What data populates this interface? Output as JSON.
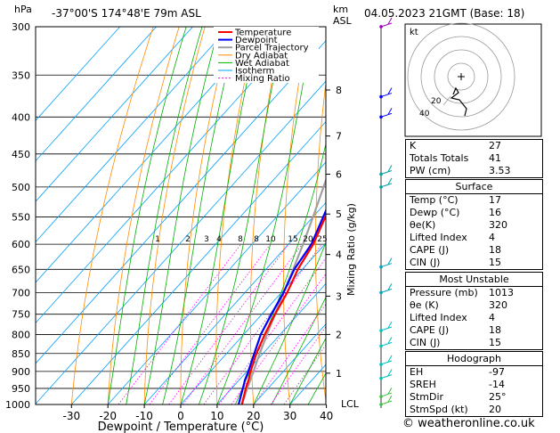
{
  "header": {
    "hpa_label": "hPa",
    "location": "-37°00'S  174°48'E  79m  ASL",
    "km_label": "km",
    "asl_label": "ASL",
    "datetime": "04.05.2023  21GMT  (Base: 18)"
  },
  "chart_data": {
    "type": "line",
    "xlabel": "Dewpoint / Temperature (°C)",
    "ylabel": "Mixing Ratio (g/kg)",
    "xlim": [
      -40,
      40
    ],
    "ylim": [
      1000,
      300
    ],
    "x_ticks": [
      "-30",
      "-20",
      "-10",
      "0",
      "10",
      "20",
      "30",
      "40"
    ],
    "pressure_levels": [
      "300",
      "350",
      "400",
      "450",
      "500",
      "550",
      "600",
      "650",
      "700",
      "750",
      "800",
      "850",
      "900",
      "950",
      "1000"
    ],
    "km_ticks": [
      {
        "km": "8",
        "p": 367
      },
      {
        "km": "7",
        "p": 425
      },
      {
        "km": "6",
        "p": 480
      },
      {
        "km": "5",
        "p": 545
      },
      {
        "km": "4",
        "p": 620
      },
      {
        "km": "3",
        "p": 708
      },
      {
        "km": "2",
        "p": 800
      },
      {
        "km": "1",
        "p": 905
      }
    ],
    "lcl_label": "LCL",
    "lcl_p": 1000,
    "mixing_ratio_labels": [
      "1",
      "2",
      "3",
      "4",
      "8",
      "8",
      "10",
      "15",
      "20",
      "25"
    ],
    "legend": [
      "Temperature",
      "Dewpoint",
      "Parcel Trajectory",
      "Dry Adiabat",
      "Wet Adiabat",
      "Isotherm",
      "Mixing Ratio"
    ],
    "series": [
      {
        "name": "Temperature",
        "color": "#ff0000",
        "points": [
          [
            1000,
            16.8
          ],
          [
            950,
            13.9
          ],
          [
            925,
            12.6
          ],
          [
            900,
            11.0
          ],
          [
            850,
            8.2
          ],
          [
            800,
            5.8
          ],
          [
            750,
            3.6
          ],
          [
            700,
            1.6
          ],
          [
            650,
            -1.2
          ],
          [
            600,
            -3.2
          ],
          [
            550,
            -6.6
          ],
          [
            500,
            -10.2
          ],
          [
            450,
            -15.5
          ],
          [
            400,
            -21.5
          ],
          [
            350,
            -28.5
          ],
          [
            300,
            -37.0
          ]
        ]
      },
      {
        "name": "Dewpoint",
        "color": "#0000ff",
        "points": [
          [
            1000,
            15.9
          ],
          [
            950,
            13.1
          ],
          [
            925,
            11.6
          ],
          [
            900,
            10.4
          ],
          [
            850,
            7.6
          ],
          [
            800,
            4.7
          ],
          [
            750,
            2.6
          ],
          [
            700,
            0.6
          ],
          [
            650,
            -2.2
          ],
          [
            600,
            -3.7
          ],
          [
            550,
            -7.2
          ],
          [
            500,
            -11.0
          ],
          [
            450,
            -16.5
          ],
          [
            400,
            -22.6
          ],
          [
            350,
            -30.0
          ],
          [
            300,
            -39.0
          ]
        ]
      },
      {
        "name": "Parcel Trajectory",
        "color": "#a0a0a0",
        "points": [
          [
            1000,
            16.8
          ],
          [
            950,
            14.3
          ],
          [
            900,
            11.8
          ],
          [
            850,
            9.1
          ],
          [
            800,
            6.4
          ],
          [
            750,
            3.6
          ],
          [
            700,
            0.6
          ],
          [
            650,
            -2.5
          ],
          [
            600,
            -6.0
          ],
          [
            550,
            -10.0
          ],
          [
            500,
            -14.5
          ],
          [
            450,
            -19.5
          ],
          [
            400,
            -25.5
          ],
          [
            350,
            -32.5
          ],
          [
            300,
            -40.5
          ]
        ]
      }
    ]
  },
  "stats": {
    "indices": [
      {
        "label": "K",
        "value": "27"
      },
      {
        "label": "Totals Totals",
        "value": "41"
      },
      {
        "label": "PW (cm)",
        "value": "3.53"
      }
    ],
    "surface": {
      "title": "Surface",
      "rows": [
        {
          "label": "Temp (°C)",
          "value": "17"
        },
        {
          "label": "Dewp (°C)",
          "value": "16"
        },
        {
          "label": "θe(K)",
          "value": "320"
        },
        {
          "label": "Lifted Index",
          "value": "4"
        },
        {
          "label": "CAPE (J)",
          "value": "18"
        },
        {
          "label": "CIN (J)",
          "value": "15"
        }
      ]
    },
    "most_unstable": {
      "title": "Most Unstable",
      "rows": [
        {
          "label": "Pressure (mb)",
          "value": "1013"
        },
        {
          "label": "θe (K)",
          "value": "320"
        },
        {
          "label": "Lifted Index",
          "value": "4"
        },
        {
          "label": "CAPE (J)",
          "value": "18"
        },
        {
          "label": "CIN (J)",
          "value": "15"
        }
      ]
    },
    "hodograph": {
      "title": "Hodograph",
      "rows": [
        {
          "label": "EH",
          "value": "-97"
        },
        {
          "label": "SREH",
          "value": "-14"
        },
        {
          "label": "StmDir",
          "value": "25°"
        },
        {
          "label": "StmSpd (kt)",
          "value": "20"
        }
      ]
    }
  },
  "hodo": {
    "kt_label": "kt",
    "ring_labels": [
      "40",
      "20"
    ]
  },
  "credit": "© weatheronline.co.uk",
  "colors": {
    "temperature": "#ff0000",
    "dewpoint": "#0000ff",
    "parcel": "#a0a0a0",
    "dry_adiabat": "#ff8c00",
    "wet_adiabat": "#00b000",
    "isotherm": "#00a0ff",
    "mixing_ratio": "#ff00ff",
    "wind": "#00a0c0"
  }
}
